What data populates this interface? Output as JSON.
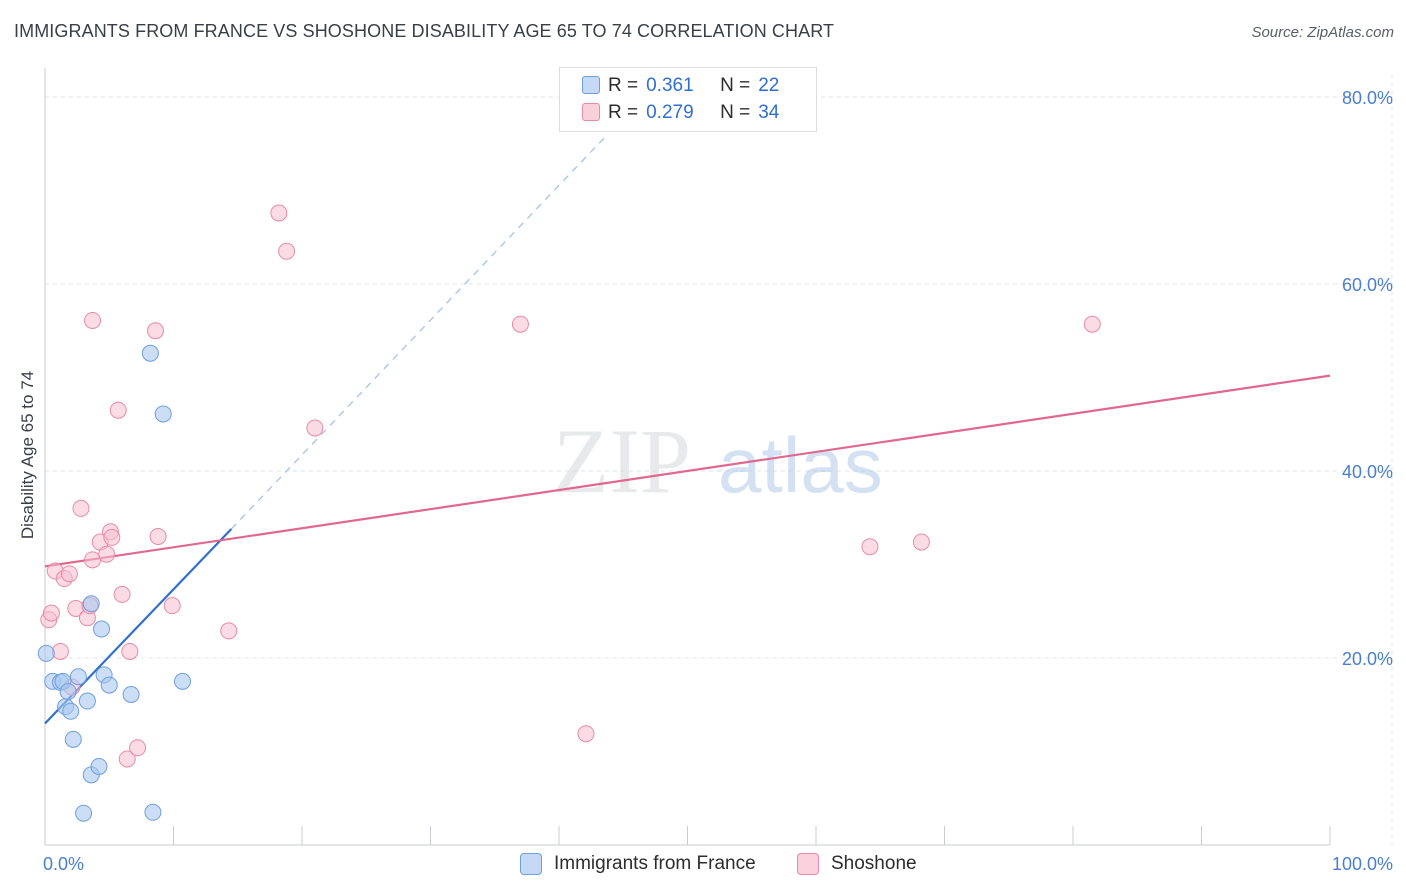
{
  "header": {
    "title": "IMMIGRANTS FROM FRANCE VS SHOSHONE DISABILITY AGE 65 TO 74 CORRELATION CHART",
    "source": "Source: ZipAtlas.com"
  },
  "legend_top": {
    "rows": [
      {
        "r_label": "R =",
        "r_value": "0.361",
        "n_label": "N =",
        "n_value": "22"
      },
      {
        "r_label": "R =",
        "r_value": "0.279",
        "n_label": "N =",
        "n_value": "34"
      }
    ]
  },
  "legend_bottom": {
    "items": [
      {
        "label": "Immigrants from France"
      },
      {
        "label": "Shoshone"
      }
    ]
  },
  "watermark": {
    "part1": "ZIP",
    "part2": "atlas"
  },
  "colors": {
    "france_fill": "#a9c8f0",
    "france_stroke": "#6f9fdc",
    "france_line": "#2f6fcf",
    "shoshone_fill": "#f7bfd0",
    "shoshone_stroke": "#e88aa8",
    "shoshone_line": "#e0688f",
    "tick_label": "#4a7fd0",
    "grid": "#dfe3ea"
  },
  "chart_data": {
    "type": "scatter",
    "title": "IMMIGRANTS FROM FRANCE VS SHOSHONE DISABILITY AGE 65 TO 74 CORRELATION CHART",
    "xlabel": "",
    "ylabel": "Disability Age 65 to 74",
    "xlim": [
      0,
      100
    ],
    "ylim": [
      0,
      80
    ],
    "x_tick_labels": [
      "0.0%",
      "100.0%"
    ],
    "y_ticks": [
      20,
      40,
      60,
      80
    ],
    "y_tick_labels": [
      "20.0%",
      "40.0%",
      "60.0%",
      "80.0%"
    ],
    "grid": true,
    "legend_position": "top-center",
    "series": [
      {
        "name": "Immigrants from France",
        "points": [
          [
            0.1,
            20.5
          ],
          [
            0.6,
            17.5
          ],
          [
            1.2,
            17.4
          ],
          [
            1.4,
            17.5
          ],
          [
            1.6,
            14.8
          ],
          [
            1.8,
            16.4
          ],
          [
            2.0,
            14.3
          ],
          [
            2.2,
            11.3
          ],
          [
            2.6,
            18.0
          ],
          [
            3.0,
            3.4
          ],
          [
            3.3,
            15.4
          ],
          [
            3.6,
            7.5
          ],
          [
            3.6,
            25.8
          ],
          [
            4.2,
            8.4
          ],
          [
            4.4,
            23.1
          ],
          [
            4.6,
            18.2
          ],
          [
            5.0,
            17.1
          ],
          [
            6.7,
            16.1
          ],
          [
            8.2,
            52.6
          ],
          [
            8.4,
            3.5
          ],
          [
            9.2,
            46.1
          ],
          [
            10.7,
            17.5
          ]
        ],
        "trend": {
          "x": [
            0,
            14.5
          ],
          "y": [
            13.0,
            33.8
          ]
        },
        "trend_extension": {
          "x": [
            14.5,
            43.5
          ],
          "y": [
            33.8,
            75.6
          ]
        }
      },
      {
        "name": "Shoshone",
        "points": [
          [
            0.3,
            24.1
          ],
          [
            0.5,
            24.8
          ],
          [
            0.8,
            29.3
          ],
          [
            1.2,
            20.7
          ],
          [
            1.5,
            28.5
          ],
          [
            1.9,
            29.0
          ],
          [
            2.1,
            16.9
          ],
          [
            2.4,
            25.3
          ],
          [
            2.8,
            36.0
          ],
          [
            3.3,
            24.3
          ],
          [
            3.5,
            25.6
          ],
          [
            3.7,
            56.1
          ],
          [
            3.7,
            30.5
          ],
          [
            4.3,
            32.4
          ],
          [
            4.8,
            31.1
          ],
          [
            5.1,
            33.5
          ],
          [
            5.2,
            32.9
          ],
          [
            5.7,
            46.5
          ],
          [
            6.0,
            26.8
          ],
          [
            6.4,
            9.2
          ],
          [
            6.6,
            20.7
          ],
          [
            7.2,
            10.4
          ],
          [
            8.6,
            55.0
          ],
          [
            8.8,
            33.0
          ],
          [
            9.9,
            25.6
          ],
          [
            14.3,
            22.9
          ],
          [
            18.2,
            67.6
          ],
          [
            18.8,
            63.5
          ],
          [
            21.0,
            44.6
          ],
          [
            37.0,
            55.7
          ],
          [
            42.1,
            11.9
          ],
          [
            64.2,
            31.9
          ],
          [
            68.2,
            32.4
          ],
          [
            81.5,
            55.7
          ]
        ],
        "trend": {
          "x": [
            0,
            100
          ],
          "y": [
            29.8,
            50.2
          ]
        }
      }
    ]
  }
}
